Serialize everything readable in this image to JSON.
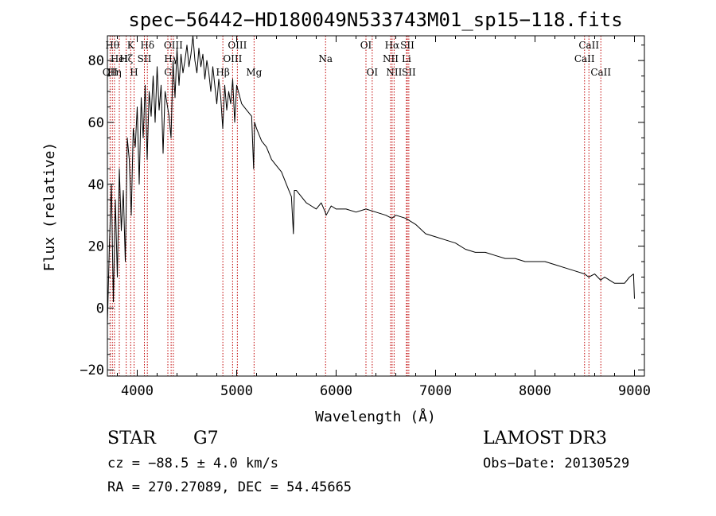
{
  "chart_data": {
    "type": "line",
    "title": "spec−56442−HD180049N533743M01_sp15−118.fits",
    "xlabel": "Wavelength (Å)",
    "ylabel": "Flux (relative)",
    "xlim": [
      3700,
      9100
    ],
    "ylim": [
      -22,
      88
    ],
    "xticks": [
      4000,
      5000,
      6000,
      7000,
      8000,
      9000
    ],
    "yticks": [
      -20,
      0,
      20,
      40,
      60,
      80
    ],
    "ytick_labels": [
      "−20",
      "0",
      "20",
      "40",
      "60",
      "80"
    ],
    "series": [
      {
        "name": "flux",
        "x": [
          3700,
          3720,
          3740,
          3760,
          3780,
          3800,
          3820,
          3840,
          3860,
          3880,
          3900,
          3920,
          3940,
          3960,
          3980,
          4000,
          4020,
          4040,
          4060,
          4080,
          4100,
          4120,
          4140,
          4160,
          4180,
          4200,
          4220,
          4240,
          4260,
          4280,
          4300,
          4320,
          4340,
          4360,
          4380,
          4400,
          4420,
          4440,
          4460,
          4480,
          4500,
          4520,
          4540,
          4560,
          4580,
          4600,
          4620,
          4640,
          4660,
          4680,
          4700,
          4720,
          4740,
          4760,
          4780,
          4800,
          4820,
          4840,
          4860,
          4880,
          4900,
          4920,
          4940,
          4960,
          4980,
          5000,
          5050,
          5100,
          5150,
          5170,
          5180,
          5200,
          5250,
          5300,
          5350,
          5400,
          5450,
          5500,
          5550,
          5570,
          5580,
          5600,
          5650,
          5700,
          5750,
          5800,
          5850,
          5890,
          5900,
          5950,
          6000,
          6100,
          6200,
          6300,
          6400,
          6500,
          6560,
          6600,
          6700,
          6800,
          6900,
          7000,
          7100,
          7200,
          7300,
          7400,
          7500,
          7600,
          7700,
          7800,
          7900,
          8000,
          8100,
          8200,
          8300,
          8400,
          8500,
          8540,
          8600,
          8660,
          8700,
          8800,
          8900,
          8950,
          8990,
          9000
        ],
        "values": [
          -5,
          20,
          40,
          2,
          35,
          10,
          45,
          25,
          38,
          15,
          55,
          48,
          30,
          58,
          52,
          65,
          40,
          68,
          55,
          72,
          48,
          70,
          62,
          75,
          60,
          78,
          64,
          72,
          50,
          70,
          66,
          62,
          55,
          80,
          68,
          84,
          72,
          82,
          76,
          80,
          85,
          78,
          82,
          88,
          80,
          76,
          84,
          78,
          82,
          74,
          80,
          76,
          70,
          78,
          72,
          66,
          74,
          68,
          58,
          72,
          64,
          70,
          66,
          74,
          60,
          72,
          66,
          64,
          62,
          45,
          60,
          58,
          54,
          52,
          48,
          46,
          44,
          40,
          36,
          24,
          38,
          38,
          36,
          34,
          33,
          32,
          34,
          31,
          30,
          33,
          32,
          32,
          31,
          32,
          31,
          30,
          29,
          30,
          29,
          27,
          24,
          23,
          22,
          21,
          19,
          18,
          18,
          17,
          16,
          16,
          15,
          15,
          15,
          14,
          13,
          12,
          11,
          10,
          11,
          9,
          10,
          8,
          8,
          10,
          11,
          3
        ]
      }
    ],
    "lines": [
      {
        "w": 3727,
        "label": "OII",
        "row": 3
      },
      {
        "w": 3750,
        "label": "Hθ",
        "row": 1
      },
      {
        "w": 3771,
        "label": "Hη",
        "row": 3
      },
      {
        "w": 3820,
        "label": "HeI",
        "row": 2
      },
      {
        "w": 3889,
        "label": "Hζ",
        "row": 2
      },
      {
        "w": 3934,
        "label": "K",
        "row": 1
      },
      {
        "w": 3968,
        "label": "H",
        "row": 3
      },
      {
        "w": 4072,
        "label": "SII",
        "row": 2
      },
      {
        "w": 4102,
        "label": "Hδ",
        "row": 1
      },
      {
        "w": 4308,
        "label": "G",
        "row": 3
      },
      {
        "w": 4341,
        "label": "Hγ",
        "row": 2
      },
      {
        "w": 4363,
        "label": "OIII",
        "row": 1
      },
      {
        "w": 4861,
        "label": "Hβ",
        "row": 3
      },
      {
        "w": 4959,
        "label": "OIII",
        "row": 2
      },
      {
        "w": 5007,
        "label": "OIII",
        "row": 1
      },
      {
        "w": 5175,
        "label": "Mg",
        "row": 3
      },
      {
        "w": 5894,
        "label": "Na",
        "row": 2
      },
      {
        "w": 6300,
        "label": "OI",
        "row": 1
      },
      {
        "w": 6363,
        "label": "OI",
        "row": 3
      },
      {
        "w": 6548,
        "label": "NII",
        "row": 2
      },
      {
        "w": 6563,
        "label": "Hα",
        "row": 1
      },
      {
        "w": 6583,
        "label": "NII",
        "row": 3
      },
      {
        "w": 6707,
        "label": "Li",
        "row": 2
      },
      {
        "w": 6716,
        "label": "SII",
        "row": 1
      },
      {
        "w": 6731,
        "label": "SII",
        "row": 3
      },
      {
        "w": 8498,
        "label": "CaII",
        "row": 2
      },
      {
        "w": 8542,
        "label": "CaII",
        "row": 1
      },
      {
        "w": 8662,
        "label": "CaII",
        "row": 3
      }
    ],
    "line_color": "#c00000"
  },
  "info": {
    "class": "STAR",
    "subclass": "G7",
    "survey": "LAMOST DR3",
    "cz": "cz = −88.5 ± 4.0 km/s",
    "obs_date": "Obs−Date: 20130529",
    "coords": "RA = 270.27089, DEC =  54.45665"
  }
}
